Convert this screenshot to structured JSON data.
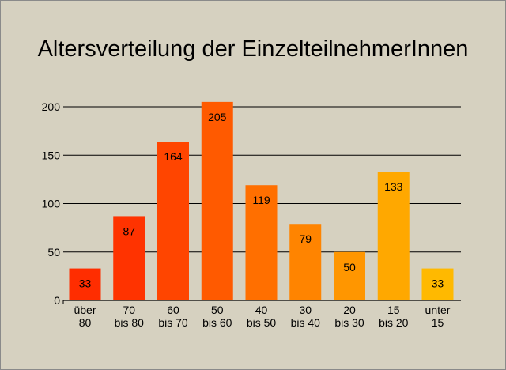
{
  "chart_data": {
    "type": "bar",
    "title": "Altersverteilung der EinzelteilnehmerInnen",
    "xlabel": "",
    "ylabel": "",
    "ylim": [
      0,
      200
    ],
    "yticks": [
      0,
      50,
      100,
      150,
      200
    ],
    "grid": true,
    "categories": [
      [
        "über",
        "80"
      ],
      [
        "70",
        "bis 80"
      ],
      [
        "60",
        "bis 70"
      ],
      [
        "50",
        "bis 60"
      ],
      [
        "40",
        "bis 50"
      ],
      [
        "30",
        "bis 40"
      ],
      [
        "20",
        "bis 30"
      ],
      [
        "15",
        "bis 20"
      ],
      [
        "unter",
        "15"
      ]
    ],
    "values": [
      33,
      87,
      164,
      205,
      119,
      79,
      50,
      133,
      33
    ],
    "colors": [
      "#ff2d00",
      "#ff3300",
      "#ff4500",
      "#ff5a00",
      "#ff6f00",
      "#ff8400",
      "#ff9600",
      "#ffa800",
      "#ffb900"
    ]
  }
}
